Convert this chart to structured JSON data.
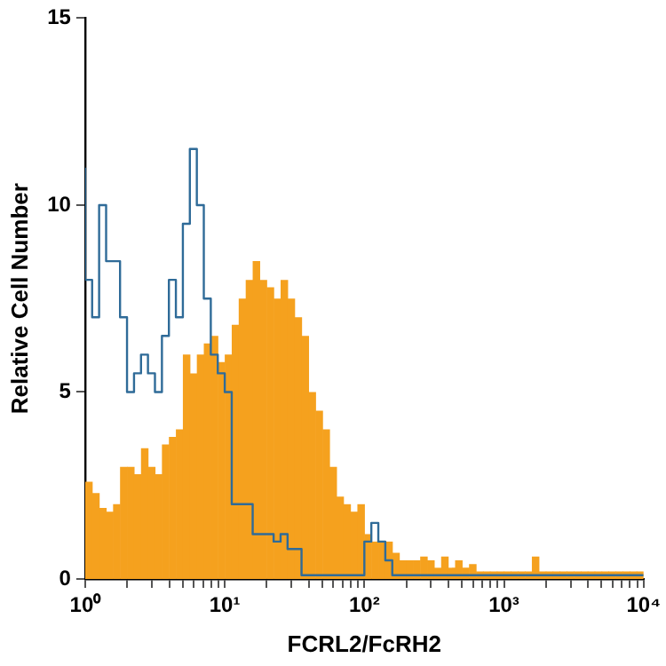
{
  "chart_data": {
    "type": "histogram",
    "xlabel": "FCRL2/FcRH2",
    "ylabel": "Relative Cell Number",
    "log": "x",
    "grid": false,
    "legend": false,
    "bins": [
      1,
      1.122,
      1.259,
      1.413,
      1.585,
      1.778,
      1.995,
      2.239,
      2.512,
      2.818,
      3.162,
      3.548,
      3.981,
      4.467,
      5.012,
      5.623,
      6.31,
      7.079,
      7.943,
      8.913,
      10,
      11.22,
      12.59,
      14.13,
      15.85,
      17.78,
      19.95,
      22.39,
      25.12,
      28.18,
      31.62,
      35.48,
      39.81,
      44.67,
      50.12,
      56.23,
      63.1,
      70.79,
      79.43,
      89.13,
      100,
      112.2,
      125.9,
      141.3,
      158.5,
      177.8,
      199.5,
      223.9,
      251.2,
      281.8,
      316.2,
      354.8,
      398.1,
      446.7,
      501.2,
      562.3,
      631,
      707.9,
      794.3,
      891.3,
      1000,
      1122,
      1259,
      1413,
      1585,
      1778,
      1995,
      2239,
      2512,
      2818,
      3162,
      3548,
      3981,
      4467,
      5012,
      5623,
      6310,
      7079,
      7943,
      8913,
      10000
    ],
    "series": [
      {
        "color": "#f5a11e",
        "values": [
          2.6,
          2.3,
          1.9,
          1.8,
          2,
          3,
          3,
          2.8,
          3.5,
          3,
          2.8,
          3.6,
          3.8,
          4,
          6,
          5.5,
          6,
          6.3,
          6.5,
          5.8,
          6,
          6.8,
          7.5,
          8,
          8.5,
          8,
          7.8,
          7.5,
          8,
          7.5,
          7,
          6.5,
          5,
          4.5,
          4,
          3,
          2.2,
          2,
          1.8,
          2,
          1.2,
          1,
          1,
          1,
          0.7,
          0.5,
          0.5,
          0.5,
          0.6,
          0.5,
          0.3,
          0.6,
          0.3,
          0.5,
          0.3,
          0.4,
          0.2,
          0.2,
          0.2,
          0.2,
          0.2,
          0.2,
          0.2,
          0.2,
          0.6,
          0.2,
          0.2,
          0.2,
          0.2,
          0.2,
          0.2,
          0.2,
          0.2,
          0.2,
          0.2,
          0.2,
          0.2,
          0.2,
          0.2,
          0.2
        ]
      },
      {
        "type": "step",
        "color": "#2f6b98",
        "x": [
          1,
          1.122,
          1.259,
          1.413,
          1.585,
          1.778,
          1.995,
          2.239,
          2.512,
          2.818,
          3.162,
          3.548,
          3.981,
          4.467,
          5.012,
          5.623,
          6.31,
          7.079,
          7.943,
          8.913,
          10,
          11.22,
          12.59,
          14.13,
          15.85,
          17.78,
          19.95,
          22.39,
          25.12,
          28.18,
          31.62,
          35.48,
          39.81,
          44.67,
          50.12,
          56.23,
          63.1,
          70.79,
          79.43,
          89.13,
          100,
          112.2,
          125.9,
          141.3,
          158.5,
          177.8,
          199.5,
          223.9,
          251.2,
          281.8,
          316.2,
          354.8,
          398.1,
          446.7,
          501.2,
          562.3,
          631,
          707.9,
          794.3,
          891.3,
          1000,
          1122,
          1259,
          1413,
          1585,
          1778,
          1995,
          2239,
          2512,
          2818,
          3162,
          3548,
          3981,
          4467,
          5012,
          5623,
          6310,
          7079,
          7943,
          8913,
          10000
        ],
        "values": [
          11,
          8,
          7,
          10,
          8.5,
          8.5,
          7,
          5,
          5.5,
          6,
          5.5,
          5,
          6.5,
          8,
          7,
          9.5,
          11.5,
          10,
          7.5,
          6,
          5.5,
          5,
          2,
          2,
          2,
          1.2,
          1.2,
          1.2,
          1,
          1.2,
          0.8,
          0.8,
          0.1,
          0.1,
          0.1,
          0.1,
          0.1,
          0.1,
          0.1,
          0.1,
          0.1,
          1,
          1.5,
          1,
          0.5,
          0.1,
          0.1,
          0.1,
          0.1,
          0.1,
          0.1,
          0.1,
          0.1,
          0.1,
          0.1,
          0.1,
          0.1,
          0.1,
          0.1,
          0.1,
          0.1,
          0.1,
          0.1,
          0.1,
          0.1,
          0.1,
          0.1,
          0.1,
          0.1,
          0.1,
          0.1,
          0.1,
          0.1,
          0.1,
          0.1,
          0.1,
          0.1,
          0.1,
          0.1,
          0.1,
          0.1
        ]
      }
    ],
    "xlim": [
      1,
      10000
    ],
    "ylim": [
      0,
      15
    ],
    "yticks": [
      0,
      5,
      10,
      15
    ],
    "xticks": [
      {
        "value": 1,
        "label": "10⁰"
      },
      {
        "value": 2,
        "label": null
      },
      {
        "value": 3,
        "label": null
      },
      {
        "value": 4,
        "label": null
      },
      {
        "value": 5,
        "label": null
      },
      {
        "value": 6,
        "label": null
      },
      {
        "value": 7,
        "label": null
      },
      {
        "value": 8,
        "label": null
      },
      {
        "value": 9,
        "label": null
      },
      {
        "value": 10,
        "label": "10¹"
      },
      {
        "value": 20,
        "label": null
      },
      {
        "value": 30,
        "label": null
      },
      {
        "value": 40,
        "label": null
      },
      {
        "value": 50,
        "label": null
      },
      {
        "value": 60,
        "label": null
      },
      {
        "value": 70,
        "label": null
      },
      {
        "value": 80,
        "label": null
      },
      {
        "value": 90,
        "label": null
      },
      {
        "value": 100,
        "label": "10²"
      },
      {
        "value": 200,
        "label": null
      },
      {
        "value": 300,
        "label": null
      },
      {
        "value": 400,
        "label": null
      },
      {
        "value": 500,
        "label": null
      },
      {
        "value": 600,
        "label": null
      },
      {
        "value": 700,
        "label": null
      },
      {
        "value": 800,
        "label": null
      },
      {
        "value": 900,
        "label": null
      },
      {
        "value": 1000,
        "label": "10³"
      },
      {
        "value": 2000,
        "label": null
      },
      {
        "value": 3000,
        "label": null
      },
      {
        "value": 4000,
        "label": null
      },
      {
        "value": 5000,
        "label": null
      },
      {
        "value": 6000,
        "label": null
      },
      {
        "value": 7000,
        "label": null
      },
      {
        "value": 8000,
        "label": null
      },
      {
        "value": 9000,
        "label": null
      },
      {
        "value": 10000,
        "label": "10⁴"
      }
    ]
  }
}
